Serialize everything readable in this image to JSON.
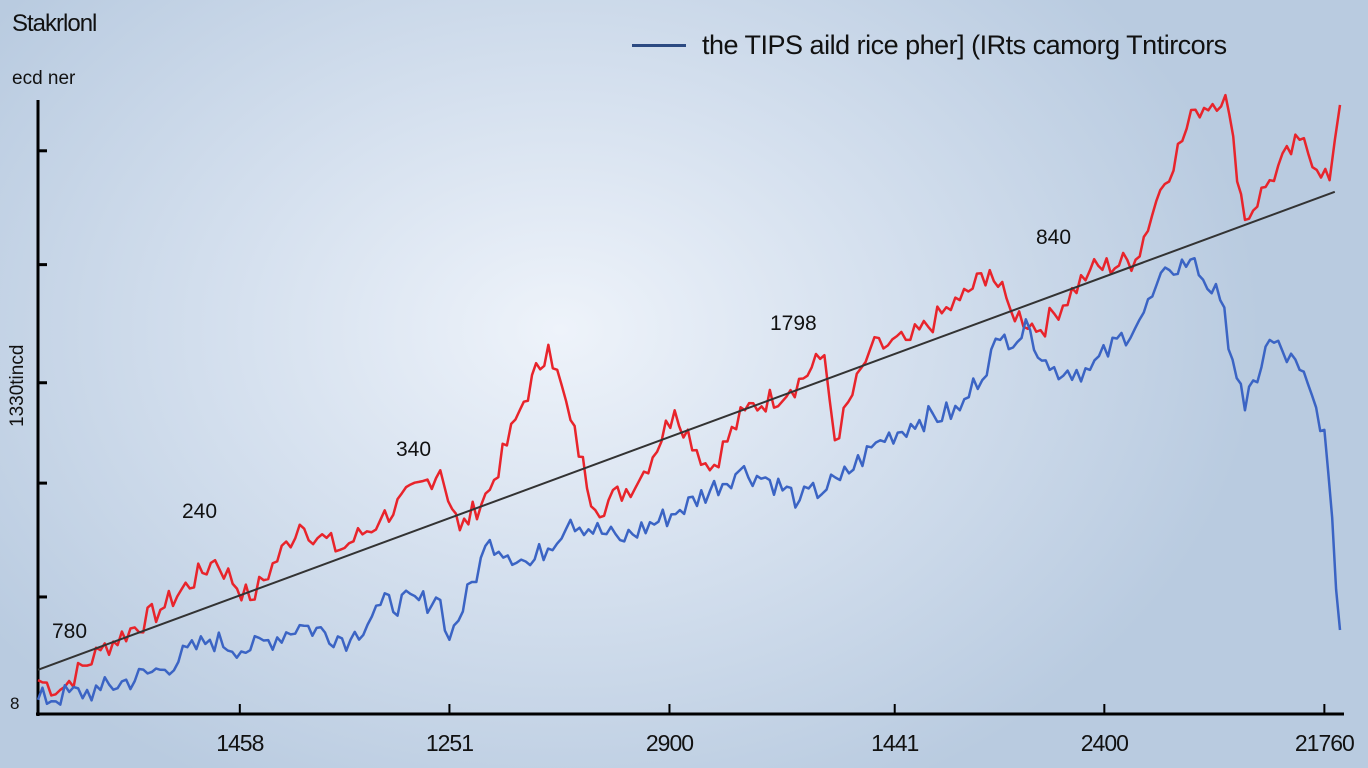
{
  "chart_data": {
    "type": "line",
    "title": "Stakrlonl",
    "subtitle": "ecd ner",
    "ylabel": "1330tincd",
    "origin_label": "8",
    "legend": {
      "label": "the TIPS aild rice pher] (IRts camorg Tntircors",
      "placement": "top-right"
    },
    "xlim": [
      0,
      100
    ],
    "ylim": [
      0,
      100
    ],
    "x_tick_labels": [
      "1458",
      "1251",
      "2900",
      "1441",
      "2400",
      "21760"
    ],
    "x_tick_positions": [
      15.5,
      31.6,
      48.5,
      65.8,
      81.9,
      98.8
    ],
    "y_tick_positions": [
      18.8,
      37.4,
      53.8,
      73.1,
      91.7
    ],
    "annotations": [
      {
        "text": "780"
      },
      {
        "text": "240"
      },
      {
        "text": "340"
      },
      {
        "text": "1798"
      },
      {
        "text": "840"
      }
    ],
    "series": [
      {
        "name": "red",
        "color": "#e8242b",
        "points": [
          [
            0,
            5.2
          ],
          [
            1.7,
            3.6
          ],
          [
            4.8,
            10.1
          ],
          [
            9.4,
            16.7
          ],
          [
            13.6,
            24.8
          ],
          [
            16.3,
            18.3
          ],
          [
            20.1,
            30.6
          ],
          [
            23.2,
            26.5
          ],
          [
            26.3,
            31.4
          ],
          [
            30.9,
            39.5
          ],
          [
            32.4,
            29.7
          ],
          [
            34.7,
            36.3
          ],
          [
            37,
            49.3
          ],
          [
            39.2,
            60
          ],
          [
            40.9,
            47.7
          ],
          [
            42.8,
            33
          ],
          [
            46.2,
            37.9
          ],
          [
            48.9,
            49.3
          ],
          [
            51.6,
            39.5
          ],
          [
            54.3,
            49.3
          ],
          [
            57.8,
            52.6
          ],
          [
            60.4,
            58.3
          ],
          [
            61.2,
            44.4
          ],
          [
            63.9,
            59.2
          ],
          [
            67,
            60.8
          ],
          [
            70.8,
            67.3
          ],
          [
            73.1,
            72.2
          ],
          [
            74.7,
            65.7
          ],
          [
            77,
            62.4
          ],
          [
            80.8,
            72.2
          ],
          [
            84.3,
            73.9
          ],
          [
            86.2,
            85.3
          ],
          [
            88.9,
            98.4
          ],
          [
            91.2,
            100.8
          ],
          [
            92.7,
            80.4
          ],
          [
            94.6,
            86.9
          ],
          [
            96.9,
            93.5
          ],
          [
            99.2,
            86.9
          ],
          [
            100,
            99.2
          ]
        ]
      },
      {
        "name": "blue",
        "color": "#3b64c4",
        "points": [
          [
            0,
            2
          ],
          [
            4.8,
            3.6
          ],
          [
            9.4,
            6.9
          ],
          [
            13.2,
            11.8
          ],
          [
            16.3,
            10.1
          ],
          [
            20.1,
            14.2
          ],
          [
            24,
            11.8
          ],
          [
            26.3,
            17.5
          ],
          [
            30.9,
            18.3
          ],
          [
            31.6,
            11.8
          ],
          [
            34.7,
            28.1
          ],
          [
            37.8,
            24
          ],
          [
            40.9,
            31.4
          ],
          [
            44.7,
            28.1
          ],
          [
            49.3,
            33
          ],
          [
            53.9,
            39.5
          ],
          [
            56.2,
            37.9
          ],
          [
            58.5,
            34.6
          ],
          [
            61.6,
            37.9
          ],
          [
            64.7,
            44.4
          ],
          [
            67.7,
            47.7
          ],
          [
            70.8,
            49.3
          ],
          [
            73.9,
            60.8
          ],
          [
            76.2,
            62.4
          ],
          [
            77.7,
            55.9
          ],
          [
            80.8,
            55.9
          ],
          [
            84.6,
            64.1
          ],
          [
            86.9,
            72.2
          ],
          [
            88.5,
            73.9
          ],
          [
            90.8,
            67.3
          ],
          [
            92.7,
            49.3
          ],
          [
            94.6,
            60.8
          ],
          [
            96.9,
            55.9
          ],
          [
            98.8,
            46.1
          ],
          [
            100,
            13.4
          ]
        ]
      },
      {
        "name": "trend",
        "color": "#333333",
        "points": [
          [
            0,
            6.9
          ],
          [
            99.6,
            85
          ]
        ]
      }
    ]
  }
}
